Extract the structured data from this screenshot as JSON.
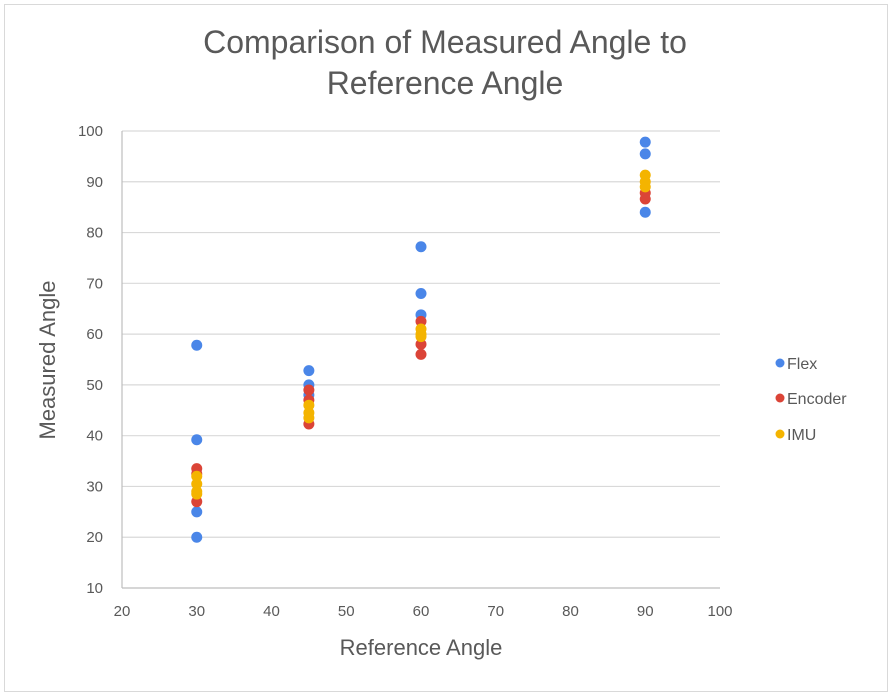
{
  "chart_data": {
    "type": "scatter",
    "title_lines": [
      "Comparison of Measured Angle to",
      "Reference Angle"
    ],
    "xlabel": "Reference Angle",
    "ylabel": "Measured Angle",
    "xlim": [
      20,
      100
    ],
    "ylim": [
      10,
      100
    ],
    "xticks": [
      "20",
      "30",
      "40",
      "50",
      "60",
      "70",
      "80",
      "90",
      "100"
    ],
    "yticks": [
      "10",
      "20",
      "30",
      "40",
      "50",
      "60",
      "70",
      "80",
      "90",
      "100"
    ],
    "grid": "horizontal",
    "legend_position": "right",
    "series": [
      {
        "name": "Flex",
        "color": "#4a86e8",
        "points": [
          [
            30,
            57.8
          ],
          [
            30,
            39.2
          ],
          [
            30,
            25
          ],
          [
            30,
            20
          ],
          [
            45,
            52.8
          ],
          [
            45,
            50
          ],
          [
            45,
            48
          ],
          [
            60,
            77.2
          ],
          [
            60,
            68
          ],
          [
            60,
            63.8
          ],
          [
            90,
            97.8
          ],
          [
            90,
            95.5
          ],
          [
            90,
            84
          ]
        ]
      },
      {
        "name": "Encoder",
        "color": "#db4437",
        "points": [
          [
            30,
            33.5
          ],
          [
            30,
            32.5
          ],
          [
            30,
            27
          ],
          [
            45,
            49
          ],
          [
            45,
            47
          ],
          [
            45,
            42.3
          ],
          [
            60,
            62.5
          ],
          [
            60,
            58
          ],
          [
            60,
            56
          ],
          [
            90,
            87.8
          ],
          [
            90,
            86.6
          ]
        ]
      },
      {
        "name": "IMU",
        "color": "#f4b400",
        "points": [
          [
            30,
            32
          ],
          [
            30,
            30.5
          ],
          [
            30,
            29
          ],
          [
            30,
            28.5
          ],
          [
            45,
            46
          ],
          [
            45,
            44.5
          ],
          [
            45,
            43.5
          ],
          [
            60,
            61
          ],
          [
            60,
            60
          ],
          [
            60,
            59.5
          ],
          [
            90,
            91.3
          ],
          [
            90,
            90
          ],
          [
            90,
            89
          ]
        ]
      }
    ]
  }
}
